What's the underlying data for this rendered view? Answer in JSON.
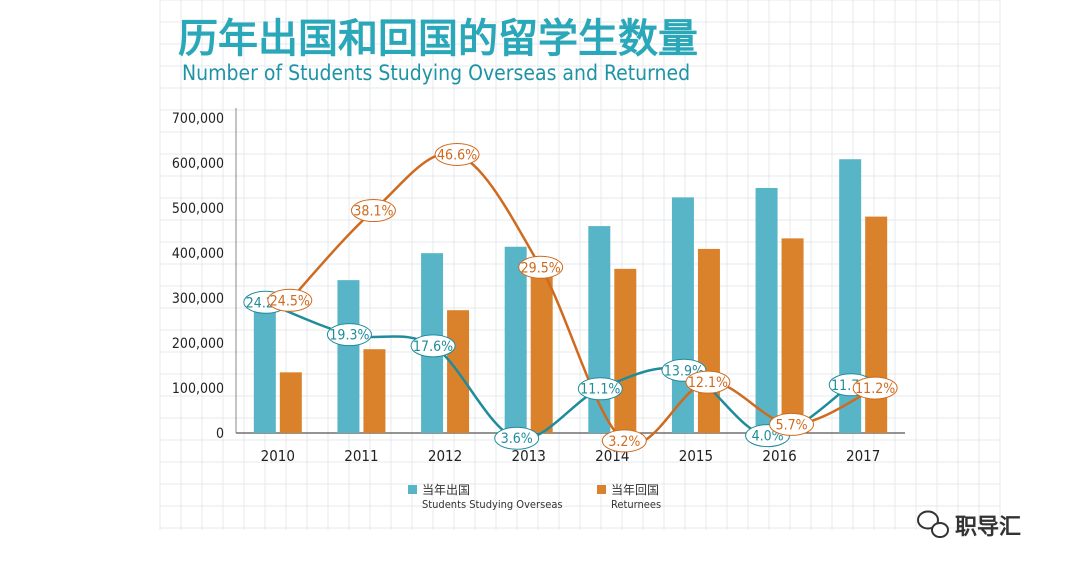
{
  "title": "历年出国和回国的留学生数量",
  "subtitle": "Number of Students Studying Overseas and Returned",
  "watermark": "职导汇",
  "colors": {
    "overseas": "#58b5c7",
    "returned": "#d9822b",
    "overseas_line": "#1e8c9b",
    "returned_line": "#cf6a1e",
    "title": "#2aa7b8"
  },
  "chart_data": {
    "type": "bar",
    "title": "历年出国和回国的留学生数量",
    "subtitle": "Number of Students Studying Overseas and Returned",
    "categories": [
      "2010",
      "2011",
      "2012",
      "2013",
      "2014",
      "2015",
      "2016",
      "2017"
    ],
    "y_ticks": [
      "700,000",
      "600,000",
      "500,000",
      "400,000",
      "300,000",
      "200,000",
      "100,000",
      "0"
    ],
    "ylim": [
      0,
      700000
    ],
    "series": [
      {
        "name": "当年出国",
        "name_en": "Students Studying Overseas",
        "values": [
          284700,
          339700,
          399600,
          413900,
          459800,
          523700,
          544500,
          608400
        ]
      },
      {
        "name": "当年回国",
        "name_en": "Returnees",
        "values": [
          134800,
          186200,
          272900,
          353500,
          364800,
          409100,
          432500,
          480900
        ]
      }
    ],
    "growth_lines": [
      {
        "series": "当年出国",
        "labels": [
          "24.2%",
          "19.3%",
          "17.6%",
          "3.6%",
          "11.1%",
          "13.9%",
          "4.0%",
          "11.7%"
        ]
      },
      {
        "series": "当年回国",
        "labels": [
          "24.5%",
          "38.1%",
          "46.6%",
          "29.5%",
          "3.2%",
          "12.1%",
          "5.7%",
          "11.2%"
        ]
      }
    ],
    "legend": [
      {
        "name": "当年出国",
        "sub": "Students Studying Overseas"
      },
      {
        "name": "当年回国",
        "sub": "Returnees"
      }
    ],
    "grid": true,
    "legend_position": "bottom"
  }
}
